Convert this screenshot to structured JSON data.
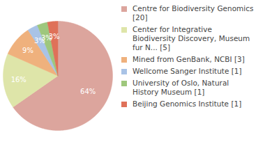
{
  "chart_data": {
    "type": "pie",
    "categories": [
      "Centre for Biodiversity Genomics [20]",
      "Center for Integrative Biodiversity Discovery, Museum fur N... [5]",
      "Mined from GenBank, NCBI [3]",
      "Wellcome Sanger Institute [1]",
      "University of Oslo, Natural History Museum [1]",
      "Beijing Genomics Institute [1]"
    ],
    "values": [
      64,
      16,
      9,
      3,
      3,
      3
    ],
    "value_labels": [
      "64%",
      "16%",
      "9%",
      "3%",
      "3%",
      "3%"
    ],
    "colors": [
      "#dca59d",
      "#dee5a9",
      "#efb17d",
      "#a9c3e6",
      "#9ec77d",
      "#df7159"
    ],
    "data_labels": true,
    "legend": "right"
  }
}
